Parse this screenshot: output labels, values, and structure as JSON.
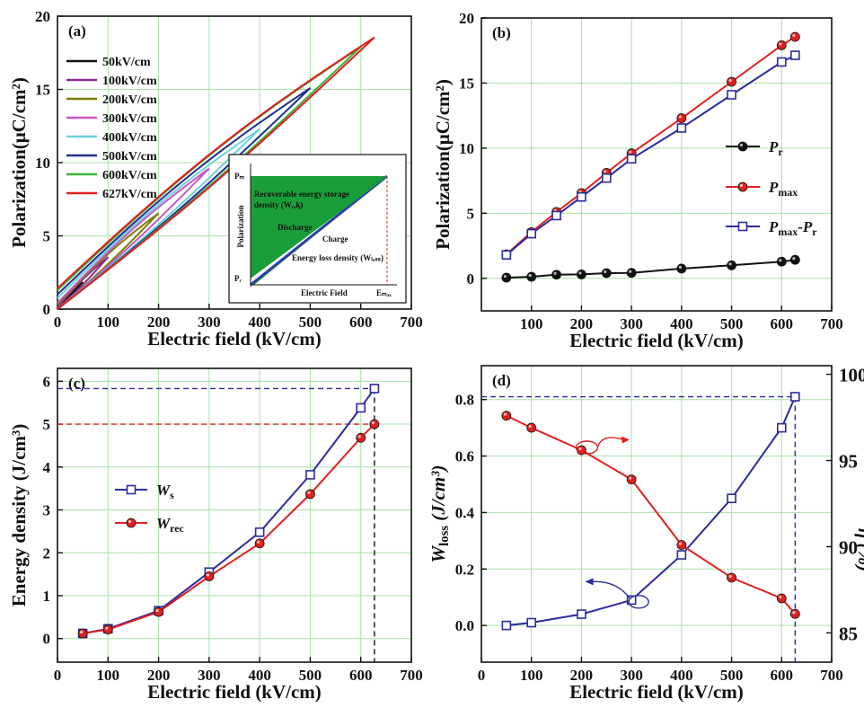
{
  "chart_data": [
    {
      "id": "a",
      "type": "line",
      "panel_label": "(a)",
      "xlabel": "Electric field (kV/cm)",
      "ylabel": "Polarization(μC/cm²)",
      "xlim": [
        0,
        700
      ],
      "ylim": [
        0,
        20
      ],
      "xticks": [
        0,
        100,
        200,
        300,
        400,
        500,
        600,
        700
      ],
      "yticks": [
        0,
        5,
        10,
        15,
        20
      ],
      "grid": true,
      "legend_position": "top-left",
      "series": [
        {
          "name": "50kV/cm",
          "color": "#111111",
          "emax": 50,
          "pmax": 1.85,
          "pr": 0.05
        },
        {
          "name": "100kV/cm",
          "color": "#8e2a8e",
          "emax": 100,
          "pmax": 3.55,
          "pr": 0.12
        },
        {
          "name": "200kV/cm",
          "color": "#7d7d00",
          "emax": 200,
          "pmax": 6.55,
          "pr": 0.3
        },
        {
          "name": "300kV/cm",
          "color": "#c657c6",
          "emax": 300,
          "pmax": 9.6,
          "pr": 0.42
        },
        {
          "name": "400kV/cm",
          "color": "#6fd0e0",
          "emax": 400,
          "pmax": 12.3,
          "pr": 0.75
        },
        {
          "name": "500kV/cm",
          "color": "#1f2f8f",
          "emax": 500,
          "pmax": 15.1,
          "pr": 1.0
        },
        {
          "name": "600kV/cm",
          "color": "#3bb03b",
          "emax": 600,
          "pmax": 17.9,
          "pr": 1.28
        },
        {
          "name": "627kV/cm",
          "color": "#e02020",
          "emax": 627,
          "pmax": 18.55,
          "pr": 1.42
        }
      ],
      "inset": {
        "label_pm": "Pₘ",
        "label_pr": "Pᵣ",
        "label_emax": "Eₘₐₓ",
        "ylabel": "Polarization",
        "xlabel": "Electric Field",
        "text_recoverable": "Recoverable energy storage",
        "text_density": "density (Wᵣₑᶄ)",
        "text_discharge": "Discharge",
        "text_charge": "Charge",
        "text_loss": "Energy loss density (Wₗₒₛₛ)"
      }
    },
    {
      "id": "b",
      "type": "line",
      "panel_label": "(b)",
      "xlabel": "Electric field (kV/cm)",
      "ylabel": "Polarization(μC/cm²)",
      "xlim": [
        0,
        700
      ],
      "ylim": [
        -2.5,
        20
      ],
      "xticks": [
        100,
        200,
        300,
        400,
        500,
        600,
        700
      ],
      "yticks": [
        0,
        5,
        10,
        15,
        20
      ],
      "grid": true,
      "legend_position": "center-right",
      "x": [
        50,
        100,
        150,
        200,
        250,
        300,
        400,
        500,
        600,
        627
      ],
      "series": [
        {
          "name": "P",
          "sub": "r",
          "color": "#111111",
          "marker": "circle",
          "values": [
            0.05,
            0.12,
            0.28,
            0.3,
            0.4,
            0.42,
            0.75,
            1.0,
            1.28,
            1.42
          ]
        },
        {
          "name": "P",
          "sub": "max",
          "color": "#e02020",
          "marker": "circle",
          "values": [
            1.85,
            3.55,
            5.1,
            6.55,
            8.1,
            9.6,
            12.3,
            15.1,
            17.9,
            18.55
          ]
        },
        {
          "name": "P",
          "sub": "max",
          "suffix": "-P",
          "sub2": "r",
          "color": "#2b2b9e",
          "marker": "square",
          "values": [
            1.8,
            3.43,
            4.82,
            6.25,
            7.7,
            9.18,
            11.55,
            14.1,
            16.62,
            17.13
          ]
        }
      ]
    },
    {
      "id": "c",
      "type": "line",
      "panel_label": "(c)",
      "xlabel": "Electric field (kV/cm)",
      "ylabel": "Energy density  (J/cm³)",
      "xlim": [
        0,
        700
      ],
      "ylim": [
        -0.55,
        6.3
      ],
      "xticks": [
        0,
        100,
        200,
        300,
        400,
        500,
        600,
        700
      ],
      "yticks": [
        0,
        1,
        2,
        3,
        4,
        5,
        6
      ],
      "grid": true,
      "legend_position": "center-left",
      "x": [
        50,
        100,
        200,
        300,
        400,
        500,
        600,
        627
      ],
      "series": [
        {
          "name": "W",
          "sub": "s",
          "color": "#2b2b9e",
          "marker": "square",
          "values": [
            0.12,
            0.23,
            0.65,
            1.55,
            2.48,
            3.82,
            5.38,
            5.83
          ]
        },
        {
          "name": "W",
          "sub": "rec",
          "color": "#e02020",
          "marker": "circle",
          "values": [
            0.12,
            0.21,
            0.62,
            1.45,
            2.22,
            3.37,
            4.68,
            5.0
          ]
        }
      ],
      "ref_lines": {
        "x": 627,
        "y_blue": 5.83,
        "y_red": 5.0
      }
    },
    {
      "id": "d",
      "type": "line",
      "panel_label": "(d)",
      "xlabel": "Electric field (kV/cm)",
      "ylabel_left": "W_loss (J/cm³)",
      "ylabel_left_main": "W",
      "ylabel_left_sub": "loss",
      "ylabel_left_unit": "(J/cm³)",
      "ylabel_right": "η (%)",
      "xlim": [
        0,
        700
      ],
      "ylim_left": [
        -0.13,
        0.92
      ],
      "ylim_right": [
        83.3,
        100.5
      ],
      "xticks": [
        0,
        100,
        200,
        300,
        400,
        500,
        600,
        700
      ],
      "yticks_left": [
        0.0,
        0.2,
        0.4,
        0.6,
        0.8
      ],
      "yticks_right": [
        85,
        90,
        95,
        100
      ],
      "grid": true,
      "x": [
        50,
        100,
        200,
        300,
        400,
        500,
        600,
        627
      ],
      "series": [
        {
          "name": "W_loss",
          "axis": "left",
          "color": "#2b2b9e",
          "marker": "square",
          "values": [
            0.0,
            0.01,
            0.04,
            0.09,
            0.25,
            0.45,
            0.7,
            0.81
          ]
        },
        {
          "name": "η",
          "axis": "right",
          "color": "#e02020",
          "marker": "circle",
          "values": [
            97.6,
            96.9,
            95.6,
            93.9,
            90.1,
            88.2,
            87.0,
            86.1
          ]
        }
      ],
      "ref_lines": {
        "x": 627,
        "y_left": 0.81
      }
    }
  ]
}
